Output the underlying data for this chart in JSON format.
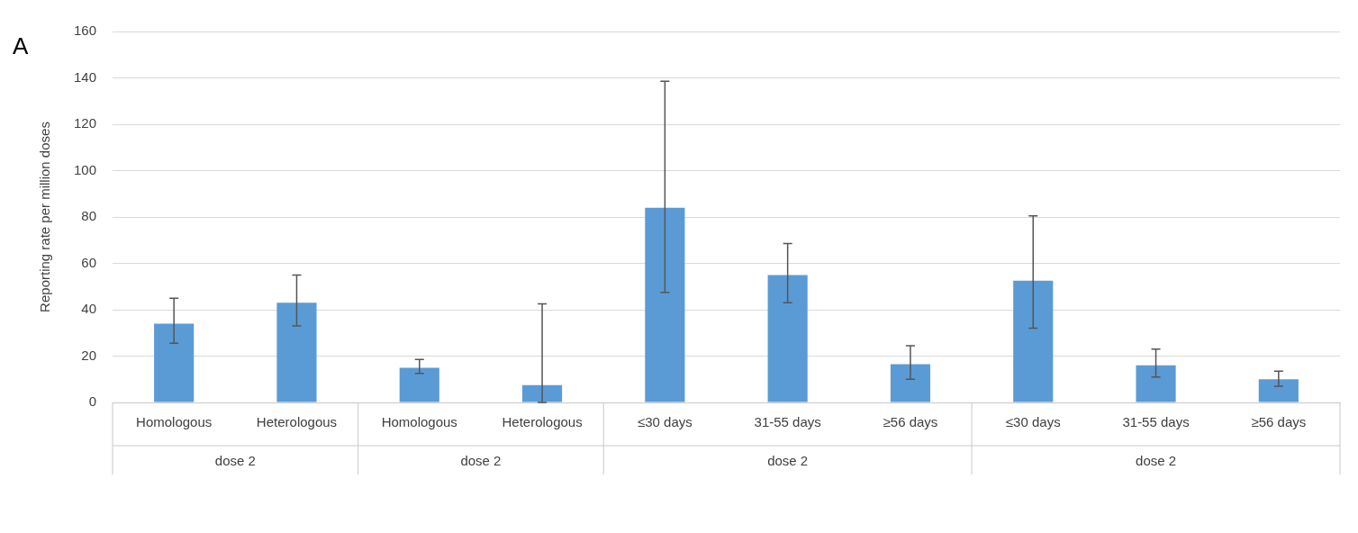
{
  "chart_data": {
    "type": "bar",
    "ylabel": "Reporting rate per million doses",
    "categories": [
      "Homologous",
      "Heterologous",
      "Homologous",
      "Heterologous",
      "≤30 days",
      "31-55 days",
      "≥56 days",
      "≤30 days",
      "31-55 days",
      "≥56 days"
    ],
    "values": [
      34,
      43,
      15,
      7.5,
      84,
      55,
      16.5,
      52.5,
      16,
      10
    ],
    "errors": [
      [
        25.5,
        45
      ],
      [
        33,
        55
      ],
      [
        12.5,
        18.5
      ],
      [
        0,
        42.5
      ],
      [
        47.5,
        138.5
      ],
      [
        43,
        68.5
      ],
      [
        10,
        24.5
      ],
      [
        32,
        80.5
      ],
      [
        11,
        23
      ],
      [
        7,
        13.5
      ]
    ],
    "color": "#5b9bd5",
    "ylim": [
      0,
      160
    ],
    "yticks": [
      0,
      20,
      40,
      60,
      80,
      100,
      120,
      140,
      160
    ],
    "grid": "y",
    "annotations": [
      "A",
      "dose 2",
      "dose 2",
      "dose 2",
      "dose 2"
    ]
  }
}
